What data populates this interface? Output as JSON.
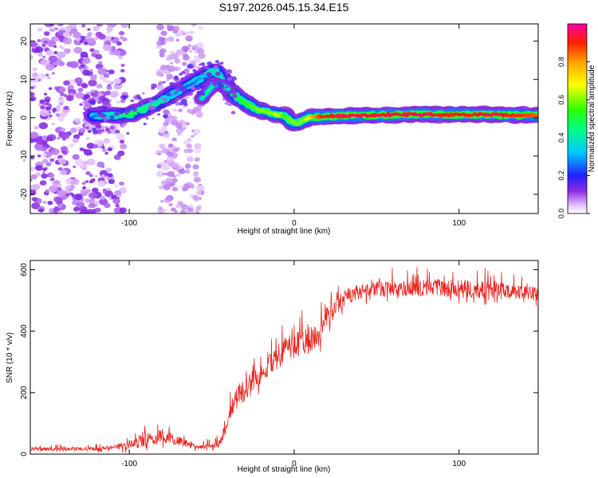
{
  "title": "S197.2026.045.15.34.E15",
  "colors": {
    "snr_line": "#e8241f",
    "axis": "#000000"
  },
  "chart_data": [
    {
      "type": "heatmap",
      "name": "spectrogram",
      "xlabel": "Height of straight line (km)",
      "ylabel": "Frequency (Hz)",
      "xlim": [
        -160,
        148
      ],
      "ylim": [
        -25,
        24.5
      ],
      "xticks": [
        -100,
        0,
        100
      ],
      "xtick_labels": [
        "-100",
        "0",
        "100"
      ],
      "yticks": [
        -20,
        -10,
        0,
        10,
        20
      ],
      "ytick_labels": [
        "-20",
        "-10",
        "0",
        "10",
        "20"
      ],
      "ridge": {
        "x": [
          -122,
          -112,
          -100,
          -90,
          -80,
          -74,
          -68,
          -62,
          -56,
          -52,
          -48,
          -44,
          -40,
          -34,
          -28,
          -22,
          -16,
          -10,
          -6,
          -2,
          2,
          6,
          10,
          16,
          30,
          50,
          80,
          96,
          100,
          120,
          148
        ],
        "y": [
          0.5,
          0.6,
          0.8,
          2.5,
          4.5,
          6.0,
          7.5,
          9.0,
          10.5,
          11.5,
          12.5,
          10.0,
          7.5,
          5.0,
          3.5,
          2.0,
          1.5,
          0.8,
          0.6,
          -1.0,
          -1.5,
          -0.5,
          0.2,
          0.3,
          0.5,
          0.7,
          0.9,
          0.8,
          0.8,
          0.8,
          0.6
        ],
        "amplitude": [
          0.2,
          0.3,
          0.45,
          0.4,
          0.35,
          0.25,
          0.2,
          0.2,
          0.25,
          0.3,
          0.35,
          0.35,
          0.4,
          0.45,
          0.5,
          0.55,
          0.55,
          0.6,
          0.5,
          0.55,
          0.55,
          0.55,
          0.7,
          0.85,
          0.9,
          0.88,
          0.9,
          0.85,
          0.85,
          0.9,
          0.8
        ]
      },
      "branch": {
        "x": [
          -56,
          -52,
          -48,
          -44,
          -40
        ],
        "y": [
          5.0,
          7.0,
          9.0,
          8.5,
          7.5
        ]
      },
      "colorbar": {
        "label": "Normalized spectral amplitude",
        "range": [
          0.0,
          1.0
        ],
        "ticks": [
          0.0,
          0.2,
          0.4,
          0.6,
          0.8
        ],
        "tick_labels": [
          "0.0",
          "0.2",
          "0.4",
          "0.6",
          "0.8"
        ]
      }
    },
    {
      "type": "line",
      "name": "snr",
      "xlabel": "Height of straight line (km)",
      "ylabel": "SNR (10 * v/v)",
      "xlim": [
        -160,
        148
      ],
      "ylim": [
        0,
        630
      ],
      "xticks": [
        -100,
        0,
        100
      ],
      "xtick_labels": [
        "-100",
        "0",
        "100"
      ],
      "yticks": [
        0,
        200,
        400,
        600
      ],
      "ytick_labels": [
        "0",
        "200",
        "400",
        "600"
      ],
      "envelope": {
        "x": [
          -160,
          -120,
          -110,
          -100,
          -90,
          -80,
          -70,
          -60,
          -50,
          -44,
          -40,
          -35,
          -30,
          -25,
          -20,
          -15,
          -10,
          -5,
          0,
          5,
          10,
          15,
          20,
          25,
          30,
          40,
          50,
          60,
          80,
          100,
          120,
          140,
          148
        ],
        "baseline": [
          15,
          15,
          20,
          25,
          40,
          50,
          40,
          20,
          25,
          40,
          110,
          170,
          200,
          230,
          250,
          280,
          300,
          330,
          340,
          350,
          360,
          380,
          430,
          470,
          500,
          520,
          530,
          530,
          535,
          530,
          525,
          520,
          515
        ],
        "noise": [
          12,
          12,
          15,
          30,
          45,
          45,
          30,
          15,
          20,
          30,
          60,
          70,
          70,
          70,
          65,
          65,
          70,
          80,
          80,
          90,
          90,
          80,
          70,
          60,
          55,
          50,
          50,
          55,
          55,
          60,
          55,
          50,
          45
        ]
      }
    }
  ]
}
